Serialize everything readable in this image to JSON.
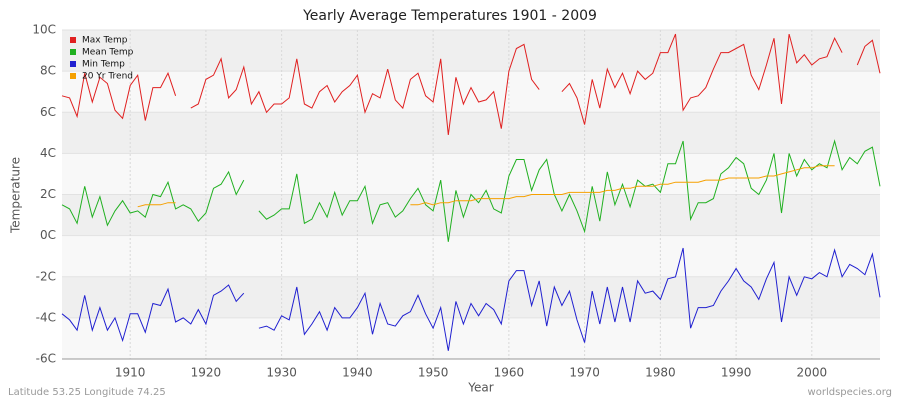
{
  "chart_data": {
    "type": "line",
    "title": "Yearly Average Temperatures 1901 - 2009",
    "x_label": "Year",
    "y_label": "Temperature",
    "footer_left": "Latitude 53.25 Longitude 74.25",
    "footer_right": "worldspecies.org",
    "x": [
      1901,
      1902,
      1903,
      1904,
      1905,
      1906,
      1907,
      1908,
      1909,
      1910,
      1911,
      1912,
      1913,
      1914,
      1915,
      1916,
      1917,
      1918,
      1919,
      1920,
      1921,
      1922,
      1923,
      1924,
      1925,
      1926,
      1927,
      1928,
      1929,
      1930,
      1931,
      1932,
      1933,
      1934,
      1935,
      1936,
      1937,
      1938,
      1939,
      1940,
      1941,
      1942,
      1943,
      1944,
      1945,
      1946,
      1947,
      1948,
      1949,
      1950,
      1951,
      1952,
      1953,
      1954,
      1955,
      1956,
      1957,
      1958,
      1959,
      1960,
      1961,
      1962,
      1963,
      1964,
      1965,
      1966,
      1967,
      1968,
      1969,
      1970,
      1971,
      1972,
      1973,
      1974,
      1975,
      1976,
      1977,
      1978,
      1979,
      1980,
      1981,
      1982,
      1983,
      1984,
      1985,
      1986,
      1987,
      1988,
      1989,
      1990,
      1991,
      1992,
      1993,
      1994,
      1995,
      1996,
      1997,
      1998,
      1999,
      2000,
      2001,
      2002,
      2003,
      2004,
      2005,
      2006,
      2007,
      2008,
      2009
    ],
    "series": [
      {
        "name": "Max Temp",
        "color": "#e02020",
        "values": [
          6.8,
          6.7,
          5.8,
          7.9,
          6.5,
          7.7,
          7.4,
          6.1,
          5.7,
          7.3,
          7.8,
          5.6,
          7.2,
          7.2,
          7.9,
          6.8,
          null,
          6.2,
          6.4,
          7.6,
          7.8,
          8.6,
          6.7,
          7.1,
          8.2,
          6.4,
          7.0,
          6.0,
          6.4,
          6.4,
          6.7,
          8.6,
          6.4,
          6.2,
          7.0,
          7.3,
          6.5,
          7.0,
          7.3,
          7.8,
          6.0,
          6.9,
          6.7,
          8.1,
          6.6,
          6.2,
          7.6,
          7.9,
          6.8,
          6.5,
          8.6,
          4.9,
          7.7,
          6.4,
          7.2,
          6.5,
          6.6,
          7.0,
          5.2,
          8.0,
          9.1,
          9.3,
          7.6,
          7.1,
          null,
          null,
          7.0,
          7.4,
          6.7,
          5.4,
          7.6,
          6.2,
          8.1,
          7.2,
          7.9,
          6.9,
          8.0,
          7.6,
          7.9,
          8.9,
          8.9,
          9.8,
          6.1,
          6.7,
          6.8,
          7.2,
          8.1,
          8.9,
          8.9,
          9.1,
          9.3,
          7.8,
          7.1,
          8.3,
          9.6,
          6.4,
          9.8,
          8.4,
          8.8,
          8.3,
          8.6,
          8.7,
          9.6,
          8.9,
          null,
          8.3,
          9.2,
          9.5,
          7.9
        ]
      },
      {
        "name": "Mean Temp",
        "color": "#20b020",
        "values": [
          1.5,
          1.3,
          0.6,
          2.4,
          0.9,
          1.9,
          0.5,
          1.2,
          1.7,
          1.1,
          1.2,
          0.9,
          2.0,
          1.9,
          2.6,
          1.3,
          1.5,
          1.3,
          0.7,
          1.1,
          2.3,
          2.5,
          3.1,
          2.0,
          2.7,
          null,
          1.2,
          0.8,
          1.0,
          1.3,
          1.3,
          3.0,
          0.6,
          0.8,
          1.6,
          0.9,
          2.1,
          1.0,
          1.7,
          1.7,
          2.4,
          0.6,
          1.5,
          1.6,
          0.9,
          1.2,
          1.8,
          2.3,
          1.5,
          1.2,
          2.7,
          -0.3,
          2.2,
          0.9,
          2.0,
          1.6,
          2.2,
          1.3,
          1.1,
          2.9,
          3.7,
          3.7,
          2.2,
          3.2,
          3.7,
          2.0,
          1.2,
          2.0,
          1.2,
          0.2,
          2.4,
          0.7,
          3.1,
          1.5,
          2.5,
          1.4,
          2.7,
          2.4,
          2.5,
          2.1,
          3.5,
          3.5,
          4.6,
          0.8,
          1.6,
          1.6,
          1.8,
          3.0,
          3.3,
          3.8,
          3.5,
          2.3,
          2.0,
          2.7,
          4.0,
          1.1,
          4.0,
          2.9,
          3.7,
          3.2,
          3.5,
          3.3,
          4.6,
          3.2,
          3.8,
          3.5,
          4.1,
          4.3,
          2.4
        ]
      },
      {
        "name": "Min Temp",
        "color": "#2020d0",
        "values": [
          -3.8,
          -4.1,
          -4.6,
          -2.9,
          -4.6,
          -3.5,
          -4.6,
          -4.0,
          -5.1,
          -3.8,
          -3.8,
          -4.7,
          -3.3,
          -3.4,
          -2.6,
          -4.2,
          -4.0,
          -4.3,
          -3.6,
          -4.3,
          -2.9,
          -2.7,
          -2.4,
          -3.2,
          -2.8,
          null,
          -4.5,
          -4.4,
          -4.6,
          -3.9,
          -4.1,
          -2.5,
          -4.8,
          -4.3,
          -3.7,
          -4.6,
          -3.5,
          -4.0,
          -4.0,
          -3.5,
          -2.8,
          -4.8,
          -3.3,
          -4.3,
          -4.4,
          -3.9,
          -3.7,
          -2.9,
          -3.8,
          -4.5,
          -3.5,
          -5.6,
          -3.2,
          -4.3,
          -3.3,
          -3.9,
          -3.3,
          -3.6,
          -4.3,
          -2.2,
          -1.7,
          -1.7,
          -3.4,
          -2.2,
          -4.4,
          -2.5,
          -3.4,
          -2.7,
          -4.1,
          -5.2,
          -2.7,
          -4.3,
          -2.5,
          -4.2,
          -2.5,
          -4.2,
          -2.2,
          -2.8,
          -2.7,
          -3.1,
          -2.1,
          -2.0,
          -0.6,
          -4.5,
          -3.5,
          -3.5,
          -3.4,
          -2.7,
          -2.2,
          -1.6,
          -2.2,
          -2.5,
          -3.1,
          -2.1,
          -1.3,
          -4.2,
          -2.0,
          -2.9,
          -2.0,
          -2.1,
          -1.8,
          -2.0,
          -0.7,
          -2.0,
          -1.4,
          -1.6,
          -1.9,
          -0.9,
          -3.0
        ]
      },
      {
        "name": "20 Yr Trend",
        "color": "#f5a000",
        "values": [
          null,
          null,
          null,
          null,
          null,
          null,
          null,
          null,
          null,
          null,
          1.4,
          1.5,
          1.5,
          1.5,
          1.6,
          1.6,
          null,
          null,
          null,
          null,
          null,
          null,
          null,
          null,
          null,
          null,
          null,
          null,
          null,
          null,
          null,
          null,
          null,
          null,
          null,
          null,
          null,
          null,
          null,
          null,
          null,
          null,
          null,
          null,
          null,
          null,
          1.5,
          1.5,
          1.6,
          1.5,
          1.6,
          1.6,
          1.7,
          1.7,
          1.7,
          1.8,
          1.8,
          1.8,
          1.8,
          1.8,
          1.9,
          1.9,
          2.0,
          2.0,
          2.0,
          2.0,
          2.0,
          2.1,
          2.1,
          2.1,
          2.1,
          2.1,
          2.2,
          2.2,
          2.3,
          2.3,
          2.4,
          2.4,
          2.4,
          2.5,
          2.5,
          2.6,
          2.6,
          2.6,
          2.6,
          2.7,
          2.7,
          2.7,
          2.8,
          2.8,
          2.8,
          2.8,
          2.8,
          2.9,
          2.9,
          3.0,
          3.1,
          3.2,
          3.3,
          3.3,
          3.4,
          3.4,
          3.4,
          null,
          null,
          null,
          null,
          null,
          null
        ]
      }
    ],
    "xlim": [
      1901,
      2009
    ],
    "xticks": [
      1910,
      1920,
      1930,
      1940,
      1950,
      1960,
      1970,
      1980,
      1990,
      2000
    ],
    "ylim": [
      -6,
      10
    ],
    "yticks": [
      {
        "value": -6,
        "label": "-6C"
      },
      {
        "value": -4,
        "label": "-4C"
      },
      {
        "value": -2,
        "label": "-2C"
      },
      {
        "value": 0,
        "label": "0C"
      },
      {
        "value": 2,
        "label": "2C"
      },
      {
        "value": 4,
        "label": "4C"
      },
      {
        "value": 6,
        "label": "6C"
      },
      {
        "value": 8,
        "label": "8C"
      },
      {
        "value": 10,
        "label": "10C"
      }
    ],
    "grid": true,
    "legend": "top-left"
  }
}
